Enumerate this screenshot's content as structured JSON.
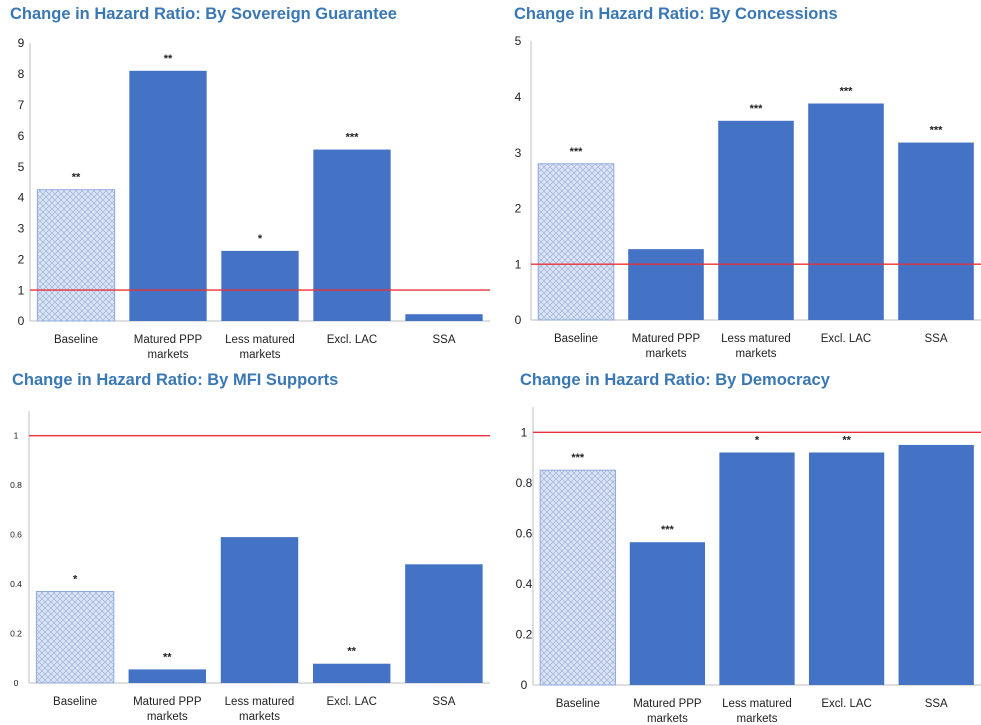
{
  "reference_line_color": "#e8323a",
  "bar_color": "#4472c4",
  "baseline_fill": "#dbe4f3",
  "categories": [
    [
      "Baseline"
    ],
    [
      "Matured PPP",
      "markets"
    ],
    [
      "Less matured",
      "markets"
    ],
    [
      "Excl. LAC"
    ],
    [
      "SSA"
    ]
  ],
  "chart_data": [
    {
      "type": "bar",
      "title": "Change in Hazard Ratio: By Sovereign Guarantee",
      "categories": [
        "Baseline",
        "Matured PPP markets",
        "Less matured markets",
        "Excl. LAC",
        "SSA"
      ],
      "values": [
        4.25,
        8.1,
        2.27,
        5.55,
        0.22
      ],
      "significance": [
        "**",
        "**",
        "*",
        "***",
        ""
      ],
      "ylim": [
        0,
        9
      ],
      "yticks": [
        "0",
        "1",
        "2",
        "3",
        "4",
        "5",
        "6",
        "7",
        "8",
        "9"
      ],
      "reference_line": 1
    },
    {
      "type": "bar",
      "title": "Change in Hazard Ratio: By Concessions",
      "categories": [
        "Baseline",
        "Matured PPP markets",
        "Less matured markets",
        "Excl. LAC",
        "SSA"
      ],
      "values": [
        2.8,
        1.27,
        3.57,
        3.88,
        3.18
      ],
      "significance": [
        "***",
        "",
        "***",
        "***",
        "***"
      ],
      "ylim": [
        0,
        5
      ],
      "yticks": [
        "0",
        "1",
        "2",
        "3",
        "4",
        "5"
      ],
      "reference_line": 1
    },
    {
      "type": "bar",
      "title": "Change in Hazard Ratio: By MFI Supports",
      "categories": [
        "Baseline",
        "Matured PPP markets",
        "Less matured markets",
        "Excl. LAC",
        "SSA"
      ],
      "values": [
        0.37,
        0.055,
        0.59,
        0.078,
        0.48
      ],
      "significance": [
        "*",
        "**",
        "",
        "**",
        ""
      ],
      "ylim": [
        0,
        1.1
      ],
      "yticks": [
        "0",
        "0.2",
        "0.4",
        "0.6",
        "0.8",
        "1"
      ],
      "reference_line": 1
    },
    {
      "type": "bar",
      "title": "Change in Hazard Ratio: By Democracy",
      "categories": [
        "Baseline",
        "Matured PPP markets",
        "Less matured markets",
        "Excl. LAC",
        "SSA"
      ],
      "values": [
        0.85,
        0.565,
        0.92,
        0.92,
        0.95
      ],
      "significance": [
        "***",
        "***",
        "*",
        "**",
        ""
      ],
      "ylim": [
        0,
        1.1
      ],
      "yticks": [
        "0",
        "0.2",
        "0.4",
        "0.6",
        "0.8",
        "1"
      ],
      "reference_line": 1
    }
  ]
}
